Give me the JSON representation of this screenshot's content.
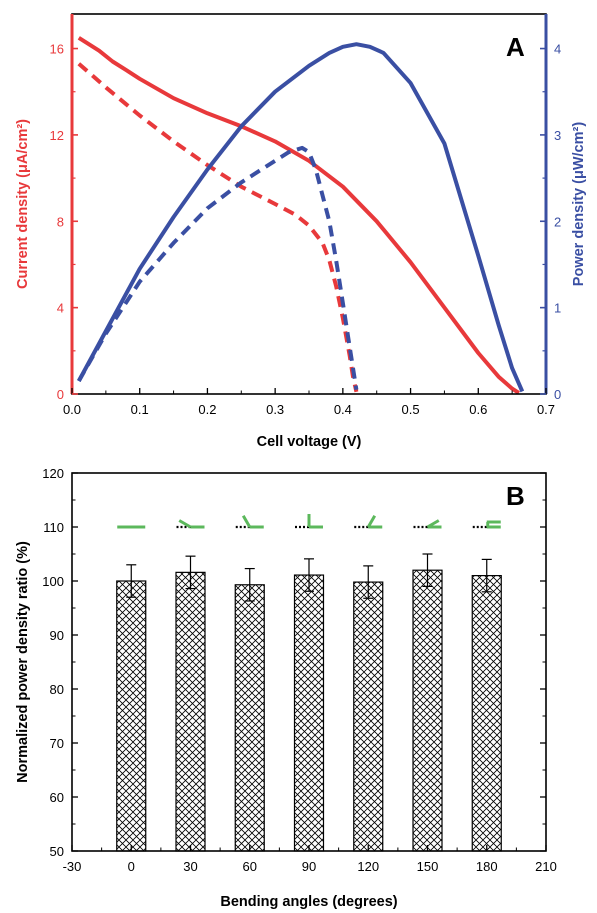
{
  "chart_data": [
    {
      "type": "line",
      "panel_label": "A",
      "xlabel": "Cell voltage (V)",
      "ylabel_left": "Current density (μA/cm²)",
      "ylabel_right": "Power density (μW/cm²)",
      "xlim": [
        0,
        0.7
      ],
      "ylim_left": [
        0,
        17.6
      ],
      "ylim_right": [
        0,
        4.4
      ],
      "x_ticks": [
        "0.0",
        "0.1",
        "0.2",
        "0.3",
        "0.4",
        "0.5",
        "0.6",
        "0.7"
      ],
      "y_left_ticks": [
        "0",
        "4",
        "8",
        "12",
        "16"
      ],
      "y_right_ticks": [
        "0",
        "1",
        "2",
        "3",
        "4"
      ],
      "colors": {
        "current": "#e8393b",
        "power": "#3a4fa3"
      },
      "series": [
        {
          "axis": "left",
          "color": "#e8393b",
          "style": "solid",
          "x": [
            0.01,
            0.02,
            0.04,
            0.06,
            0.08,
            0.1,
            0.15,
            0.2,
            0.25,
            0.3,
            0.35,
            0.4,
            0.45,
            0.5,
            0.55,
            0.6,
            0.63,
            0.65,
            0.66
          ],
          "y": [
            16.5,
            16.3,
            15.9,
            15.4,
            15.0,
            14.6,
            13.7,
            13.0,
            12.4,
            11.7,
            10.8,
            9.6,
            8.0,
            6.1,
            4.0,
            1.9,
            0.8,
            0.25,
            0.05
          ]
        },
        {
          "axis": "left",
          "color": "#e8393b",
          "style": "dashed",
          "x": [
            0.01,
            0.05,
            0.1,
            0.15,
            0.2,
            0.25,
            0.3,
            0.33,
            0.35,
            0.37,
            0.38,
            0.39,
            0.4,
            0.41,
            0.415,
            0.42
          ],
          "y": [
            15.3,
            14.2,
            12.9,
            11.7,
            10.6,
            9.6,
            8.8,
            8.3,
            7.8,
            7.0,
            6.2,
            5.0,
            3.5,
            1.8,
            0.8,
            0.1
          ]
        },
        {
          "axis": "right",
          "color": "#3a4fa3",
          "style": "solid",
          "x": [
            0.01,
            0.05,
            0.1,
            0.15,
            0.2,
            0.25,
            0.3,
            0.35,
            0.38,
            0.4,
            0.42,
            0.44,
            0.46,
            0.5,
            0.55,
            0.6,
            0.63,
            0.65,
            0.665
          ],
          "y": [
            0.15,
            0.73,
            1.45,
            2.05,
            2.6,
            3.1,
            3.5,
            3.8,
            3.95,
            4.02,
            4.05,
            4.02,
            3.95,
            3.6,
            2.9,
            1.6,
            0.8,
            0.3,
            0.03
          ]
        },
        {
          "axis": "right",
          "color": "#3a4fa3",
          "style": "dashed",
          "x": [
            0.01,
            0.05,
            0.1,
            0.15,
            0.2,
            0.25,
            0.3,
            0.32,
            0.34,
            0.35,
            0.36,
            0.38,
            0.39,
            0.4,
            0.41,
            0.415,
            0.42
          ],
          "y": [
            0.15,
            0.7,
            1.3,
            1.75,
            2.15,
            2.45,
            2.7,
            2.8,
            2.85,
            2.8,
            2.6,
            2.0,
            1.55,
            1.05,
            0.55,
            0.3,
            0.05
          ]
        }
      ]
    },
    {
      "type": "bar",
      "panel_label": "B",
      "xlabel": "Bending angles (degrees)",
      "ylabel": "Normalized power density ratio (%)",
      "xlim": [
        -30,
        210
      ],
      "ylim": [
        50,
        120
      ],
      "x_ticks": [
        "-30",
        "0",
        "30",
        "60",
        "90",
        "120",
        "150",
        "180",
        "210"
      ],
      "y_ticks": [
        "50",
        "60",
        "70",
        "80",
        "90",
        "100",
        "110",
        "120"
      ],
      "categories": [
        0,
        30,
        60,
        90,
        120,
        150,
        180
      ],
      "values": [
        100.0,
        101.6,
        99.3,
        101.1,
        99.8,
        102.0,
        101.0
      ],
      "errors": [
        3.0,
        3.0,
        3.0,
        3.0,
        3.0,
        3.0,
        3.0
      ],
      "bend_icon_color": "#5cb85c"
    }
  ]
}
